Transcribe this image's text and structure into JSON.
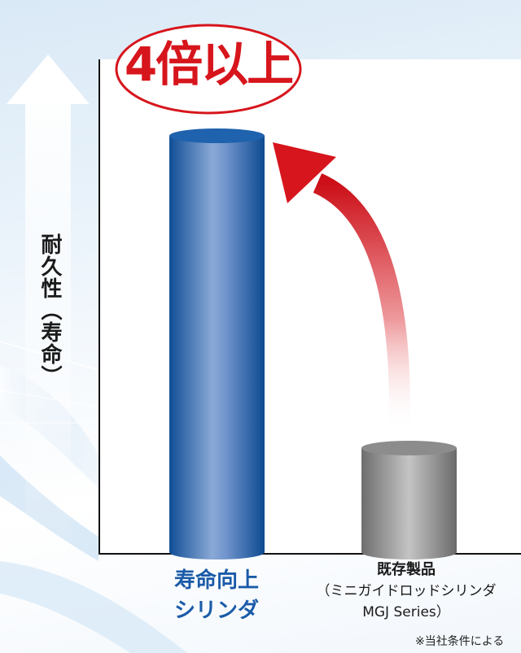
{
  "chart_data": {
    "type": "bar",
    "categories": [
      {
        "lines": [
          "寿命向上",
          "シリンダ"
        ]
      },
      {
        "lines": [
          "既存製品",
          "（ミニガイドロッドシリンダ",
          "MGJ Series）"
        ]
      }
    ],
    "values": [
      4,
      1
    ],
    "ylabel": "耐久性（寿命）",
    "annotation": "4倍以上",
    "footnote": "※当社条件による",
    "colors": {
      "new": "#1f62ad",
      "existing": "#8c8c8c",
      "accent": "#d7151c"
    },
    "grid": false
  }
}
